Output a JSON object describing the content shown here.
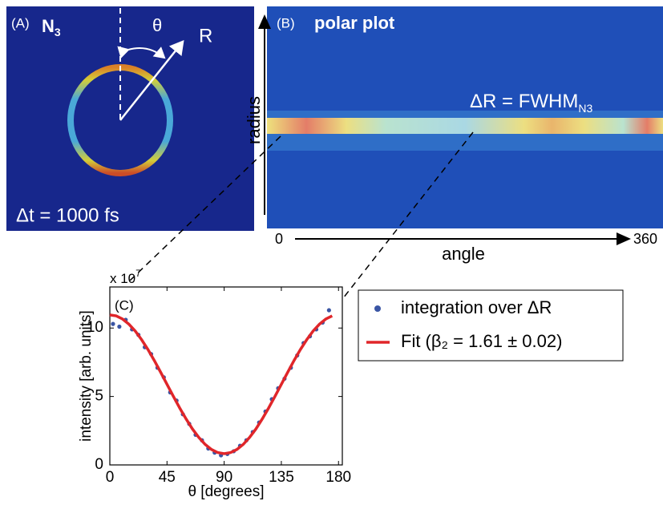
{
  "panel_a": {
    "label": "(A)",
    "title": "N",
    "title_sub": "3",
    "theta": "θ",
    "r": "R",
    "delay": "Δt = 1000 fs"
  },
  "panel_b": {
    "label": "(B)",
    "title": "polar plot",
    "delta_r": "ΔR = FWHM",
    "delta_r_sub": "N3",
    "y_axis_label": "radius",
    "x_axis_label": "angle",
    "x_start": 0,
    "x_end": 360
  },
  "chart_data": {
    "type": "scatter",
    "label": "(C)",
    "multiplier": "x 10",
    "multiplier_exp": "7",
    "x_label": "θ [degrees]",
    "y_label": "intensity [arb. units]",
    "xlim": [
      0,
      183
    ],
    "ylim": [
      0,
      13
    ],
    "xticks": [
      0,
      45,
      90,
      135,
      180
    ],
    "yticks": [
      0,
      5,
      10
    ],
    "series": [
      {
        "name": "integration over ΔR",
        "type": "scatter",
        "color": "#3a55a4",
        "x": [
          2.5,
          7.5,
          12.5,
          17.5,
          22.5,
          27.5,
          32.5,
          37.5,
          42.5,
          47.5,
          52.5,
          57.5,
          62.5,
          67.5,
          72.5,
          77.5,
          82.5,
          87.5,
          92.5,
          97.5,
          102.5,
          107.5,
          112.5,
          117.5,
          122.5,
          127.5,
          132.5,
          137.5,
          142.5,
          147.5,
          152.5,
          157.5,
          162.5,
          167.5,
          172.5
        ],
        "values": [
          10.3,
          10.1,
          10.6,
          9.9,
          9.5,
          8.6,
          8.1,
          7.1,
          6.4,
          5.3,
          4.7,
          3.7,
          3.0,
          2.2,
          1.8,
          1.2,
          0.9,
          0.7,
          0.8,
          1.0,
          1.4,
          1.8,
          2.4,
          3.1,
          3.9,
          4.8,
          5.6,
          6.3,
          7.1,
          8.0,
          8.9,
          9.4,
          9.9,
          10.4,
          11.3
        ]
      },
      {
        "name": "Fit (β₂ = 1.61 ± 0.02)",
        "type": "line",
        "color": "#e0262a",
        "x": [
          0,
          5,
          10,
          15,
          20,
          25,
          30,
          35,
          40,
          45,
          50,
          55,
          60,
          65,
          70,
          75,
          80,
          85,
          90,
          95,
          100,
          105,
          110,
          115,
          120,
          125,
          130,
          135,
          140,
          145,
          150,
          155,
          160,
          165,
          170,
          175
        ],
        "values": [
          10.96,
          10.89,
          10.66,
          10.28,
          9.78,
          9.15,
          8.43,
          7.63,
          6.77,
          5.89,
          5.01,
          4.16,
          3.36,
          2.63,
          2.01,
          1.5,
          1.13,
          0.9,
          0.82,
          0.9,
          1.13,
          1.5,
          2.01,
          2.63,
          3.36,
          4.16,
          5.01,
          5.89,
          6.77,
          7.63,
          8.43,
          9.15,
          9.78,
          10.28,
          10.66,
          10.89
        ]
      }
    ]
  }
}
